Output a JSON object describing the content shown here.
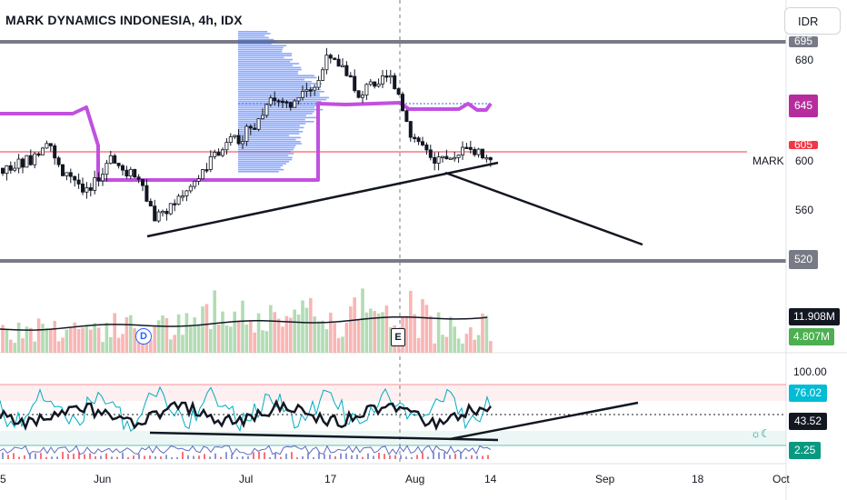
{
  "header": {
    "title": "MARK DYNAMICS INDONESIA, 4h, IDX",
    "currency_button": "IDR"
  },
  "price_axis": {
    "labels": [
      "680",
      "600",
      "560"
    ],
    "tags": {
      "top_line": "695",
      "resistance": "645",
      "current": "605",
      "support": "520"
    },
    "symbol_label": "MARK"
  },
  "volume_axis": {
    "volume_ma": "11.908M",
    "volume": "4.807M"
  },
  "rsi_axis": {
    "max_label": "100.00",
    "upper": "76.02",
    "rsi": "43.52",
    "lower": "2.25"
  },
  "time_axis": {
    "labels": [
      "5",
      "Jun",
      "Jul",
      "17",
      "Aug",
      "14",
      "Sep",
      "18",
      "Oct"
    ]
  },
  "events": {
    "dividend": "D",
    "earnings": "E"
  },
  "colors": {
    "up": "#26a69a",
    "down": "#131722",
    "purple": "#c150e0",
    "profile": "#2962ff",
    "red_line": "#f23645",
    "resistance_tag": "#b72c9c",
    "support_tag": "#787b86",
    "volume_ma_tag": "#131722",
    "volume_tag": "#4caf50",
    "rsi_upper_tag": "#00bcd4",
    "rsi_lower_tag": "#089981"
  },
  "chart_data": {
    "type": "candlestick",
    "title": "MARK DYNAMICS INDONESIA, 4h, IDX",
    "price_range": [
      520,
      700
    ],
    "horizontal_levels": [
      695,
      645,
      605,
      520
    ],
    "x_ticks": [
      "5",
      "Jun",
      "Jul",
      "17",
      "Aug",
      "14",
      "Sep",
      "18",
      "Oct"
    ],
    "rsi_range": [
      0,
      100
    ],
    "rsi_last": 43.52,
    "rsi_upper_band": 76.02,
    "rsi_lower_band": 2.25,
    "volume_last": "4.807M",
    "volume_ma_last": "11.908M"
  }
}
